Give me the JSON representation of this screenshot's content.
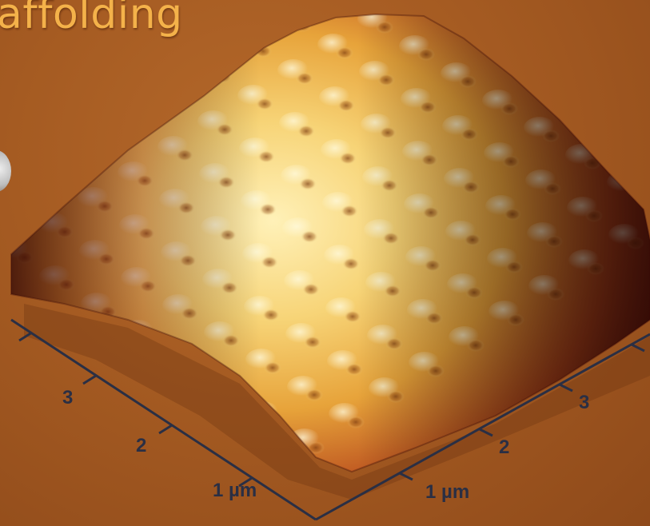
{
  "title": "affolding",
  "axes": {
    "left_ticks": [
      "3",
      "2",
      "1 µm"
    ],
    "right_ticks": [
      "3",
      "2",
      "1 µm"
    ]
  },
  "colors": {
    "background": "#a55b22",
    "title": "#f4b24a",
    "axis": "#2a2f44"
  }
}
